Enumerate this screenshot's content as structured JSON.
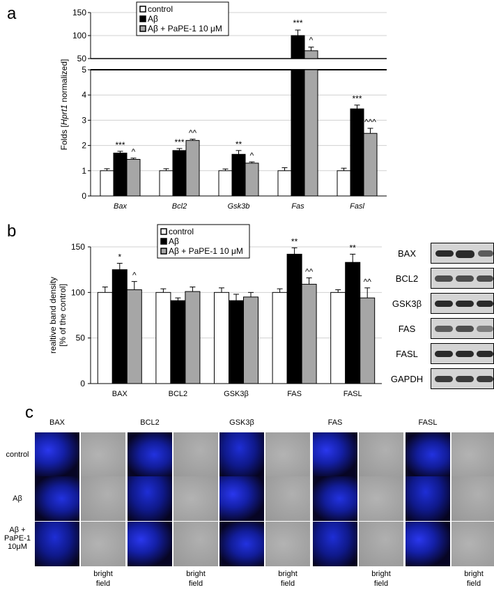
{
  "panels": {
    "a": "a",
    "b": "b",
    "c": "c"
  },
  "legend": {
    "control": "control",
    "abeta": "Aβ",
    "abeta_pape": "Aβ + PaPE-1 10 μM"
  },
  "colors": {
    "control": "#ffffff",
    "abeta": "#000000",
    "abeta_pape": "#a6a6a6",
    "fluor": "#1a2ad8",
    "bright": "#a9a9a9"
  },
  "chart_data": [
    {
      "type": "bar",
      "title": "",
      "ylabel_parts": [
        "Folds [",
        "Hprt1",
        " normalized]"
      ],
      "categories": [
        "Bax",
        "Bcl2",
        "Gsk3b",
        "Fas",
        "Fasl"
      ],
      "categories_italic": true,
      "y_axis_break": true,
      "lower_ylim": [
        0,
        5
      ],
      "lower_yticks": [
        0,
        1,
        2,
        3,
        4,
        5
      ],
      "upper_ylim": [
        50,
        150
      ],
      "upper_yticks": [
        50,
        100,
        150
      ],
      "grid": "horizontal",
      "legend_position": "top-center",
      "series": [
        {
          "name": "control",
          "values": [
            1.0,
            1.0,
            1.0,
            1.0,
            1.0
          ],
          "errors": [
            0.08,
            0.08,
            0.07,
            0.12,
            0.1
          ]
        },
        {
          "name": "Aβ",
          "values": [
            1.7,
            1.8,
            1.65,
            100,
            3.45
          ],
          "errors": [
            0.07,
            0.08,
            0.15,
            12,
            0.15
          ]
        },
        {
          "name": "Aβ + PaPE-1 10 μM",
          "values": [
            1.45,
            2.2,
            1.3,
            67,
            2.48
          ],
          "errors": [
            0.05,
            0.05,
            0.05,
            8,
            0.2
          ]
        }
      ],
      "annotations": [
        [
          "",
          "***",
          "^"
        ],
        [
          "",
          "***",
          "^^"
        ],
        [
          "",
          "**",
          "^"
        ],
        [
          "",
          "***",
          "^"
        ],
        [
          "",
          "***",
          "^^^"
        ]
      ]
    },
    {
      "type": "bar",
      "title": "",
      "ylabel_lines": [
        "realtive band density",
        "[% of the control]"
      ],
      "categories": [
        "BAX",
        "BCL2",
        "GSK3β",
        "FAS",
        "FASL"
      ],
      "ylim": [
        0,
        150
      ],
      "yticks": [
        0,
        50,
        100,
        150
      ],
      "grid": "horizontal",
      "legend_position": "top-center",
      "series": [
        {
          "name": "control",
          "values": [
            100,
            100,
            100,
            100,
            100
          ],
          "errors": [
            6,
            4,
            5,
            4,
            3
          ]
        },
        {
          "name": "Aβ",
          "values": [
            125,
            91,
            91,
            142,
            133
          ],
          "errors": [
            7,
            3,
            7,
            7,
            9
          ]
        },
        {
          "name": "Aβ + PaPE-1 10 μM",
          "values": [
            103,
            101,
            95,
            109,
            94
          ],
          "errors": [
            9,
            5,
            5,
            7,
            11
          ]
        }
      ],
      "annotations": [
        [
          "",
          "*",
          "^"
        ],
        [
          "",
          "",
          ""
        ],
        [
          "",
          "",
          ""
        ],
        [
          "",
          "**",
          "^^"
        ],
        [
          "",
          "**",
          "^^"
        ]
      ]
    }
  ],
  "western_blot": {
    "rows": [
      "BAX",
      "BCL2",
      "GSK3β",
      "FAS",
      "FASL",
      "GAPDH"
    ]
  },
  "imaging": {
    "column_headers": [
      "BAX",
      "BCL2",
      "GSK3β",
      "FAS",
      "FASL"
    ],
    "row_headers": [
      [
        "control"
      ],
      [
        "Aβ"
      ],
      [
        "Aβ +",
        "PaPE-1",
        "10μM"
      ]
    ],
    "bright_field_label": [
      "bright",
      "field"
    ]
  }
}
